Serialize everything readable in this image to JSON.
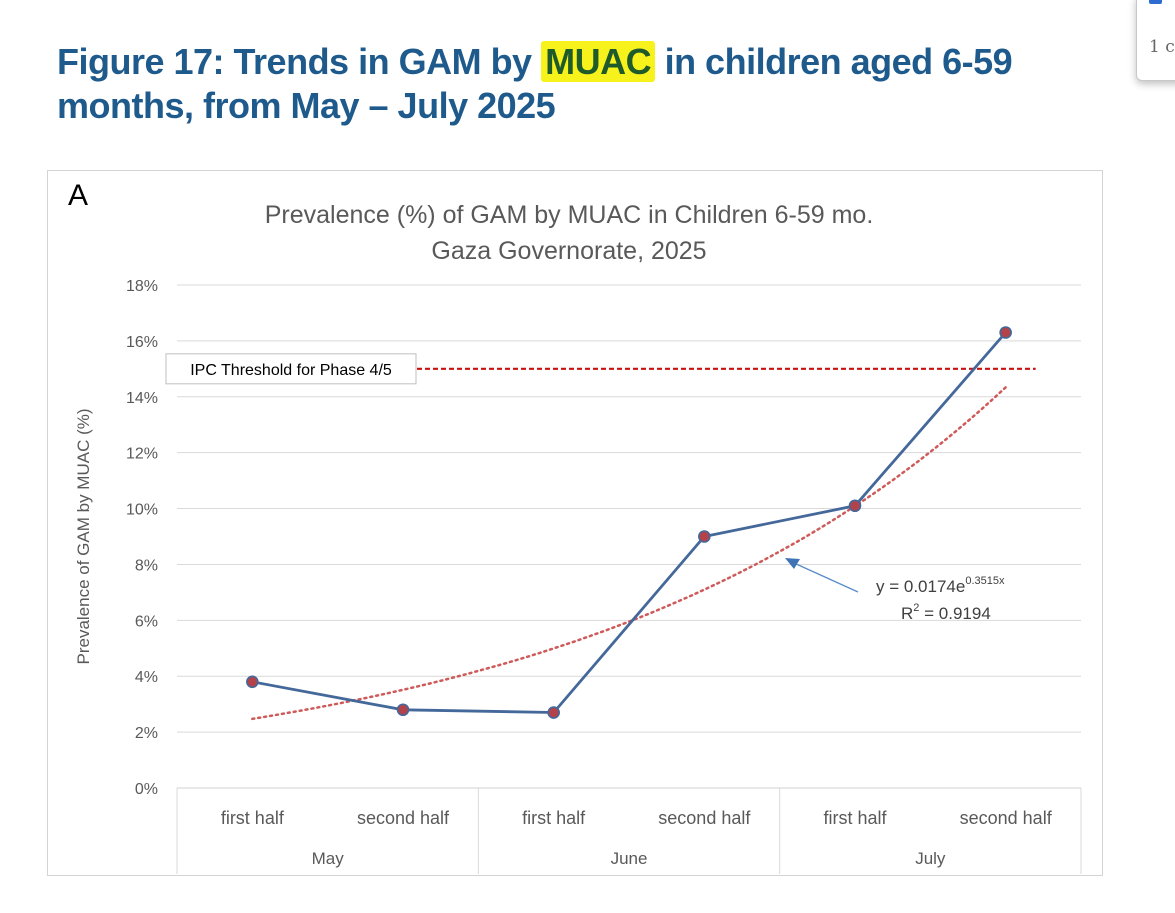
{
  "heading": {
    "before": "Figure 17: Trends in GAM by ",
    "highlight": "MUAC",
    "after": " in children aged 6-59 months, from May – July 2025"
  },
  "popup": {
    "text": "1 c",
    "check": "✓"
  },
  "chart_data": {
    "type": "line",
    "panel_label": "A",
    "title": [
      "Prevalence (%) of GAM by MUAC in Children 6-59 mo.",
      "Gaza Governorate, 2025"
    ],
    "ylabel": "Prevalence of GAM by MUAC  (%)",
    "xlabel": "",
    "ylim": [
      0,
      18
    ],
    "yticks": [
      0,
      2,
      4,
      6,
      8,
      10,
      12,
      14,
      16,
      18
    ],
    "ytick_labels": [
      "0%",
      "2%",
      "4%",
      "6%",
      "8%",
      "10%",
      "12%",
      "14%",
      "16%",
      "18%"
    ],
    "categories": [
      "first half",
      "second half",
      "first half",
      "second half",
      "first half",
      "second half"
    ],
    "groups": [
      {
        "label": "May",
        "span": 2
      },
      {
        "label": "June",
        "span": 2
      },
      {
        "label": "July",
        "span": 2
      }
    ],
    "series": [
      {
        "name": "GAM by MUAC",
        "values": [
          3.8,
          2.8,
          2.7,
          9.0,
          10.1,
          16.3
        ],
        "color": "#44689a",
        "marker_color": "#b3434b"
      }
    ],
    "trendline": {
      "type": "exponential",
      "a": 0.0174,
      "b": 0.3515,
      "color": "#cf5a5a",
      "equation_base": "y = 0.0174e",
      "equation_exp": "0.3515x",
      "r2_prefix": "R",
      "r2_sup": "2",
      "r2_value": " = 0.9194"
    },
    "threshold": {
      "value": 15,
      "label": "IPC Threshold for Phase 4/5",
      "color": "#cc1111"
    },
    "grid": true
  }
}
